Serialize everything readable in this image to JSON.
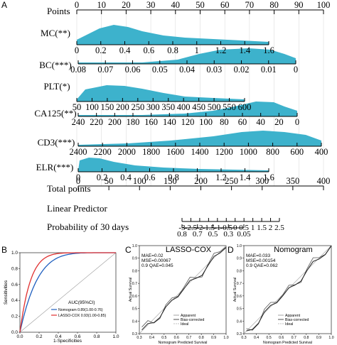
{
  "panel_labels": {
    "a": "A",
    "b": "B",
    "c": "C",
    "d": "D"
  },
  "nomogram": {
    "rows": [
      {
        "label": "Points",
        "ticks": [
          "0",
          "10",
          "20",
          "30",
          "40",
          "50",
          "60",
          "70",
          "80",
          "90",
          "100"
        ]
      },
      {
        "label": "MC(**)",
        "ticks": [
          "0",
          "0.2",
          "0.4",
          "0.6",
          "0.8",
          "1",
          "1.2",
          "1.4",
          "1.6"
        ]
      },
      {
        "label": "BC(***)",
        "ticks": [
          "0.08",
          "0.07",
          "0.06",
          "0.05",
          "0.04",
          "0.03",
          "0.02",
          "0.01",
          "0"
        ]
      },
      {
        "label": "PLT(*)",
        "ticks": [
          "50",
          "100",
          "150",
          "200",
          "250",
          "300",
          "350",
          "400",
          "450",
          "500",
          "550",
          "600"
        ]
      },
      {
        "label": "CA125(**)",
        "ticks": [
          "240",
          "220",
          "200",
          "180",
          "160",
          "140",
          "120",
          "100",
          "80",
          "60",
          "40",
          "20",
          "0"
        ]
      },
      {
        "label": "CD3(***)",
        "ticks": [
          "2400",
          "2200",
          "2000",
          "1800",
          "1600",
          "1400",
          "1200",
          "1000",
          "800",
          "600",
          "400"
        ]
      },
      {
        "label": "ELR(***)",
        "ticks": [
          "0",
          "0.2",
          "0.4",
          "0.6",
          "0.8",
          "1",
          "1.2",
          "1.4",
          "1.6"
        ]
      },
      {
        "label": "Total points",
        "ticks": [
          "0",
          "50",
          "100",
          "150",
          "200",
          "250",
          "300",
          "350",
          "400"
        ]
      },
      {
        "label": "Linear Predictor",
        "ticks": [
          "-3",
          "-2.5",
          "-2",
          "-1.5",
          "-1",
          "-0.5",
          "0",
          "0.5",
          "1",
          "1.5",
          "2",
          "2.5"
        ]
      },
      {
        "label": "Probability of 30 days",
        "ticks": [
          "0.8",
          "0.7",
          "0.5",
          "0.3",
          "0.05"
        ]
      }
    ],
    "density_color": "#3db2cc"
  },
  "roc": {
    "ylabel": "Sensitivities",
    "xlabel": "1-Specificities",
    "yticks": [
      "1.0",
      "0.8",
      "0.6",
      "0.4",
      "0.2",
      "0.0"
    ],
    "xticks": [
      "0.0",
      "0.2",
      "0.4",
      "0.6",
      "0.8",
      "1.0"
    ],
    "legend_title": "AUC(95%CI)",
    "legend": [
      {
        "name": "Nomogram 0.89(1.00-0.76)",
        "color": "#1f5fbf"
      },
      {
        "name": "LASSO-COX 0.93(1.00-0.85)",
        "color": "#e03030"
      }
    ]
  },
  "cal_c": {
    "title": "LASSO-COX",
    "stats": [
      "MAE=0.02",
      "MSE=0.00067",
      "0.9 QAE=0.045"
    ],
    "ylabel": "Actual Survival",
    "xlabel": "Nomogram Predicted Survival",
    "xticks": [
      "0.3",
      "0.4",
      "0.5",
      "0.6",
      "0.7",
      "0.8",
      "0.9",
      "1.0"
    ],
    "yticks": [
      "0.3",
      "0.4",
      "0.5",
      "0.6",
      "0.7",
      "0.8",
      "0.9",
      "1.0"
    ],
    "legend": [
      "Apparent",
      "Bias-corrected",
      "Ideal"
    ]
  },
  "cal_d": {
    "title": "Nomogram",
    "stats": [
      "MAE=0.033",
      "MSE=0.00154",
      "0.9 QAE=0.062"
    ],
    "ylabel": "Actual Survival",
    "xlabel": "Nomogram Predicted Survival",
    "xticks": [
      "0.3",
      "0.4",
      "0.5",
      "0.6",
      "0.7",
      "0.8",
      "0.9",
      "1.0"
    ],
    "yticks": [
      "0.3",
      "0.4",
      "0.5",
      "0.6",
      "0.7",
      "0.8",
      "0.9",
      "1.0"
    ],
    "legend": [
      "Apparent",
      "Bias-corrected",
      "Ideal"
    ]
  }
}
